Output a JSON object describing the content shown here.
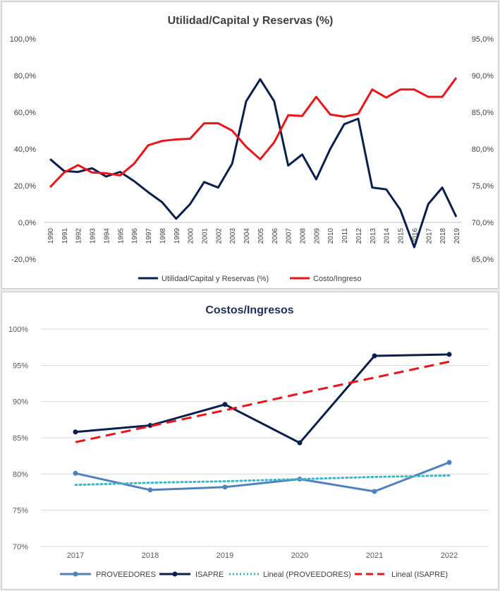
{
  "chart_data": [
    {
      "type": "line",
      "title": "Utilidad/Capital  y Reservas (%)",
      "x": [
        "1990",
        "1991",
        "1992",
        "1993",
        "1994",
        "1995",
        "1996",
        "1997",
        "1998",
        "1999",
        "2000",
        "2001",
        "2002",
        "2003",
        "2004",
        "2005",
        "2006",
        "2007",
        "2008",
        "2009",
        "2010",
        "2011",
        "2012",
        "2013",
        "2014",
        "2015",
        "2016",
        "2017",
        "2018",
        "2019"
      ],
      "y_left": {
        "ticks": [
          "100,0%",
          "80,0%",
          "60,0%",
          "40,0%",
          "20,0%",
          "0,0%",
          "-20,0%"
        ],
        "ylim": [
          -20,
          100
        ]
      },
      "y_right": {
        "ticks": [
          "95,0%",
          "90,0%",
          "85,0%",
          "80,0%",
          "75,0%",
          "70,0%",
          "65,0%"
        ],
        "ylim": [
          65,
          95
        ]
      },
      "series": [
        {
          "name": "Utilidad/Capital y Reservas (%)",
          "axis": "left",
          "color": "#0b1f4d",
          "values": [
            34.5,
            28,
            27.5,
            29.5,
            25,
            27.5,
            22.5,
            16.5,
            11,
            2,
            10,
            22,
            19,
            32,
            66,
            78,
            66,
            31,
            37,
            23.5,
            40,
            53.5,
            56.5,
            19,
            18,
            7,
            -13.5,
            10,
            19,
            3
          ]
        },
        {
          "name": "Costo/Ingreso",
          "axis": "right",
          "color": "#e8161b",
          "values": [
            74.8,
            76.8,
            77.8,
            76.8,
            76.7,
            76.4,
            78,
            80.5,
            81.1,
            81.3,
            81.4,
            83.5,
            83.5,
            82.5,
            80.3,
            78.6,
            80.9,
            84.6,
            84.5,
            87.1,
            84.7,
            84.4,
            84.8,
            88.1,
            87,
            88.1,
            88.1,
            87.1,
            87.1,
            89.7
          ]
        }
      ],
      "legend": "bottom"
    },
    {
      "type": "line",
      "title": "Costos/Ingresos",
      "categories": [
        "2017",
        "2018",
        "2019",
        "2020",
        "2021",
        "2022"
      ],
      "y_ticks": [
        "100%",
        "95%",
        "90%",
        "85%",
        "80%",
        "75%",
        "70%"
      ],
      "ylim": [
        70,
        100
      ],
      "grid": true,
      "series": [
        {
          "name": "PROVEEDORES",
          "color": "#4f81bd",
          "values": [
            80.1,
            77.8,
            78.2,
            79.3,
            77.6,
            81.6
          ]
        },
        {
          "name": "ISAPRE",
          "color": "#0b1f4d",
          "values": [
            85.8,
            86.7,
            89.6,
            84.3,
            96.3,
            96.5
          ]
        },
        {
          "name": "Lineal (PROVEEDORES)",
          "color": "#3fb6c8",
          "values": [
            78.5,
            78.8,
            79.0,
            79.3,
            79.6,
            79.8
          ],
          "style": "dotted"
        },
        {
          "name": "Lineal (ISAPRE)",
          "color": "#e8161b",
          "values": [
            84.4,
            86.6,
            88.8,
            91.1,
            93.3,
            95.5
          ],
          "style": "dashed"
        }
      ],
      "legend": "bottom"
    }
  ]
}
